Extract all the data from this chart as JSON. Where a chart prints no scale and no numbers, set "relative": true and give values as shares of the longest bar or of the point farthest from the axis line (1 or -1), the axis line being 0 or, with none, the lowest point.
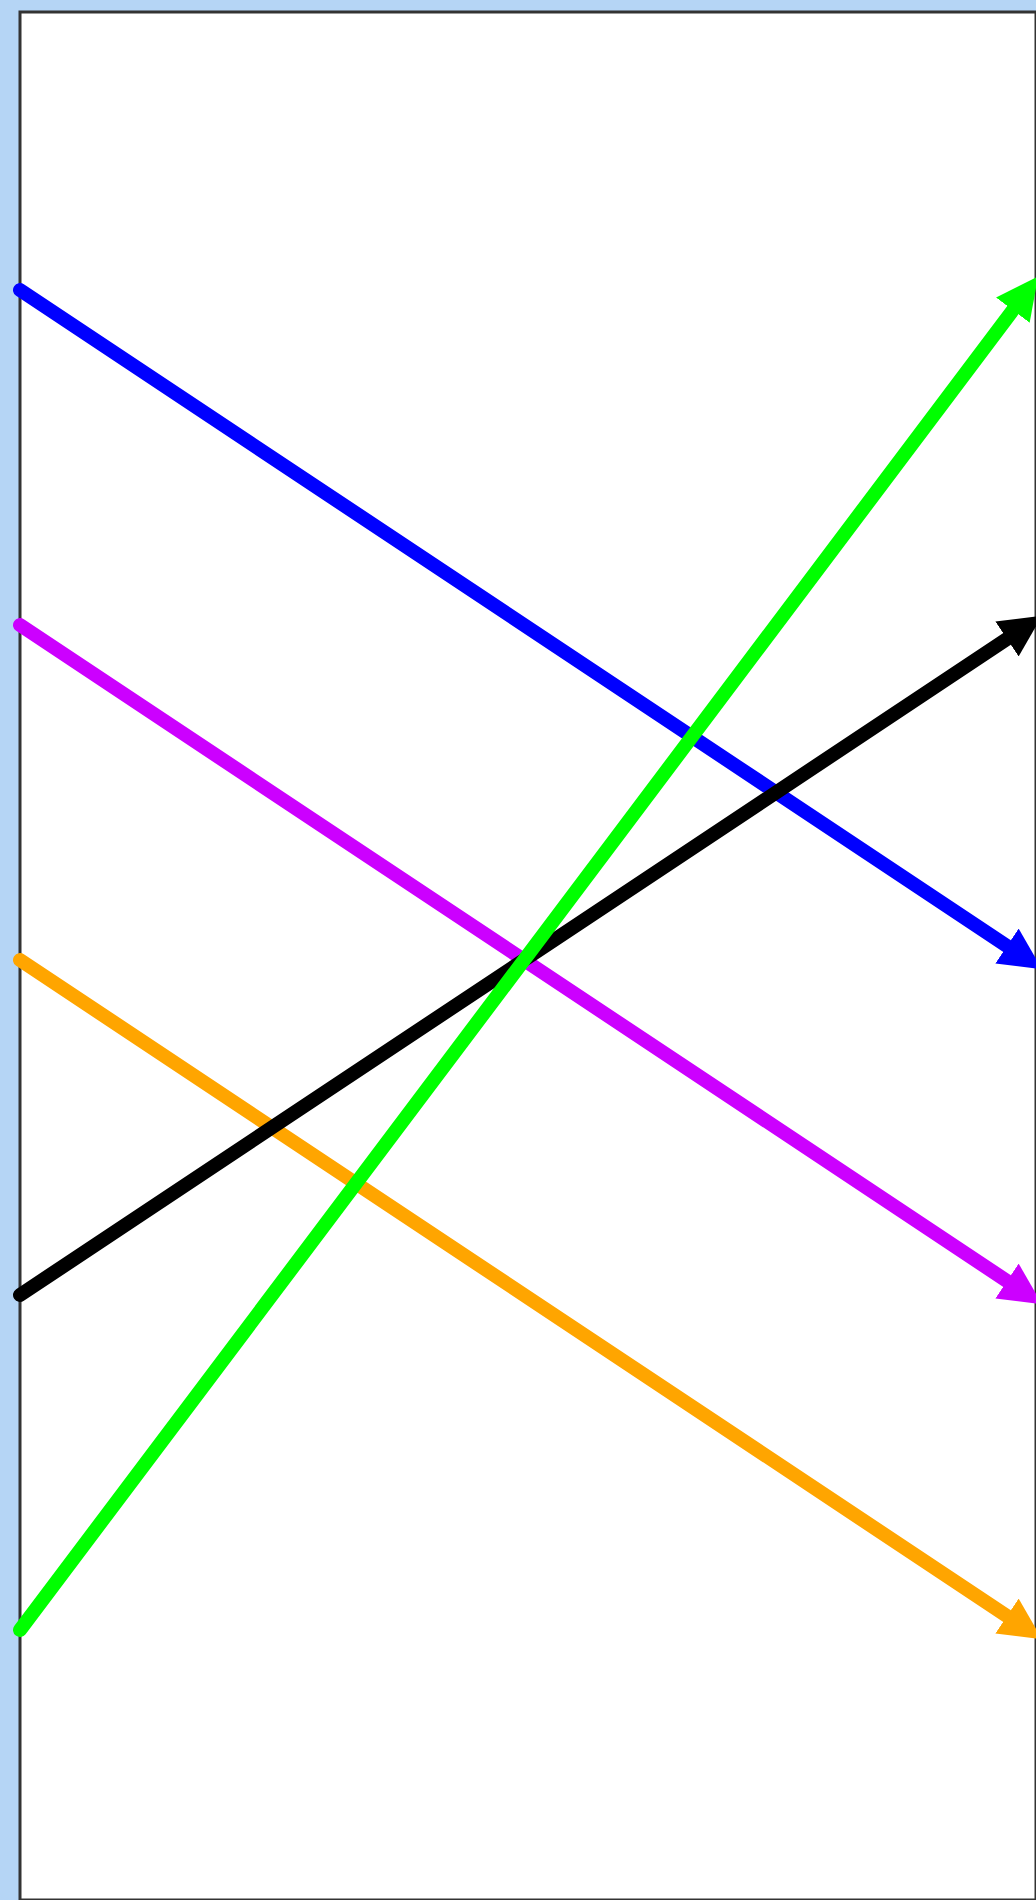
{
  "chart_data": {
    "type": "line",
    "relative": true,
    "categories": [
      null,
      null
    ],
    "line_style": "solid",
    "series": [
      {
        "color": "#0000ff",
        "values": [
          1,
          0.5
        ]
      },
      {
        "color": "#cc00ff",
        "values": [
          0.75,
          0.25
        ]
      },
      {
        "color": "#ffa500",
        "values": [
          0.5,
          0
        ]
      },
      {
        "color": "#000000",
        "values": [
          0.25,
          0.75
        ]
      },
      {
        "color": "#00ff00",
        "values": [
          0,
          1
        ]
      }
    ]
  }
}
